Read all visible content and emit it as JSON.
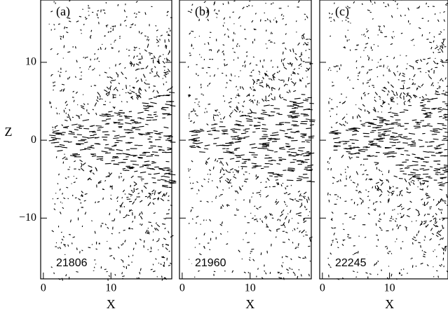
{
  "chart_data": [
    {
      "type": "vector",
      "panel": "(a)",
      "annotation": "21806",
      "xlabel": "X",
      "ylabel": "Z",
      "xlim": [
        -0.4,
        19
      ],
      "ylim": [
        -17.8,
        18
      ],
      "xticks": [
        0,
        10
      ],
      "yticks": [
        {
          "value": -10,
          "label": "−10"
        },
        0,
        10
      ]
    },
    {
      "type": "vector",
      "panel": "(b)",
      "annotation": "21960",
      "xlabel": "X",
      "xlim": [
        -0.4,
        19
      ],
      "ylim": [
        -17.8,
        18
      ],
      "xticks": [
        0,
        10
      ],
      "yticks": [
        -10,
        0,
        10
      ]
    },
    {
      "type": "vector",
      "panel": "(c)",
      "annotation": "22245",
      "xlabel": "X",
      "xlim": [
        -0.4,
        18.7
      ],
      "ylim": [
        -17.8,
        18
      ],
      "xticks": [
        0,
        10
      ],
      "yticks": [
        -10,
        0,
        10
      ]
    }
  ]
}
